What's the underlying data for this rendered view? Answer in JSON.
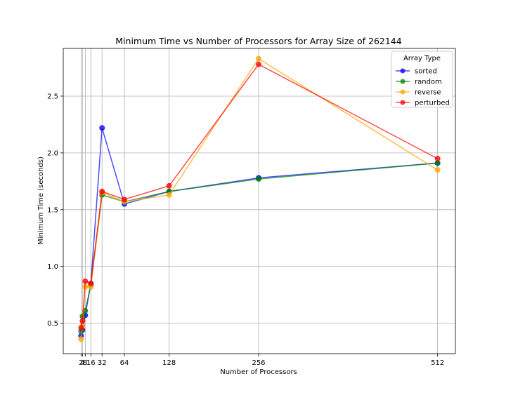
{
  "chart_data": {
    "type": "line",
    "title": "Minimum Time vs Number of Processors for Array Size of 262144",
    "xlabel": "Number of Processors",
    "ylabel": "Minimum Time (seconds)",
    "x": [
      2,
      4,
      8,
      16,
      32,
      64,
      128,
      256,
      512
    ],
    "xticks": [
      2,
      4,
      8,
      16,
      32,
      64,
      128,
      256,
      512
    ],
    "xtick_labels": [
      "2",
      "4",
      "8",
      "16",
      "32",
      "64",
      "128",
      "256",
      "512"
    ],
    "xlim": [
      -23.5,
      537.5
    ],
    "ylim": [
      0.232,
      2.92
    ],
    "yticks": [
      0.5,
      1.0,
      1.5,
      2.0,
      2.5
    ],
    "ytick_labels": [
      "0.5",
      "1.0",
      "1.5",
      "2.0",
      "2.5"
    ],
    "grid": true,
    "legend": {
      "title": "Array Type",
      "placement": "top-right"
    },
    "series": [
      {
        "name": "sorted",
        "color": "#0000ff",
        "values": [
          0.39,
          0.44,
          0.57,
          0.85,
          2.22,
          1.55,
          1.66,
          1.78,
          1.91
        ]
      },
      {
        "name": "random",
        "color": "#008000",
        "values": [
          0.43,
          0.56,
          0.61,
          0.84,
          1.63,
          1.57,
          1.66,
          1.77,
          1.91
        ]
      },
      {
        "name": "reverse",
        "color": "#ffa500",
        "values": [
          0.36,
          0.48,
          0.82,
          0.82,
          1.65,
          1.57,
          1.63,
          2.83,
          1.85
        ]
      },
      {
        "name": "perturbed",
        "color": "#ff0000",
        "values": [
          0.46,
          0.52,
          0.87,
          0.85,
          1.66,
          1.59,
          1.71,
          2.78,
          1.95
        ]
      }
    ]
  }
}
